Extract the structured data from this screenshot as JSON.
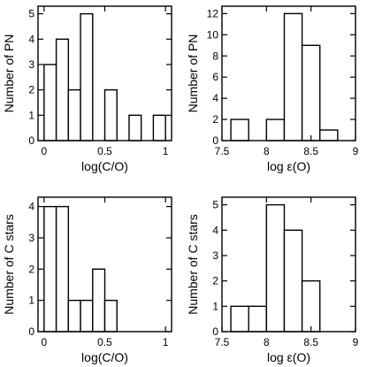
{
  "chart_data": [
    {
      "type": "bar",
      "panel": "top-left",
      "xlabel": "log(C/O)",
      "ylabel": "Number of PN",
      "xlim": [
        -0.05,
        1.05
      ],
      "ylim": [
        0,
        5.3
      ],
      "xticks": [
        0,
        0.5,
        1
      ],
      "xtick_labels": [
        "0",
        "0.5",
        "1"
      ],
      "yticks": [
        0,
        1,
        2,
        3,
        4,
        5
      ],
      "ytick_labels": [
        "0",
        "1",
        "2",
        "3",
        "4",
        "5"
      ],
      "bin_edges": [
        0,
        0.1,
        0.2,
        0.3,
        0.4,
        0.5,
        0.6,
        0.7,
        0.8,
        0.9,
        1.0
      ],
      "values": [
        3,
        4,
        2,
        5,
        0,
        2,
        0,
        1,
        0,
        1
      ],
      "grid": false
    },
    {
      "type": "bar",
      "panel": "top-right",
      "xlabel": "log ε(O)",
      "ylabel": "Number of PN",
      "xlim": [
        7.5,
        9.0
      ],
      "ylim": [
        0,
        12.7
      ],
      "xticks": [
        7.5,
        8,
        8.5,
        9
      ],
      "xtick_labels": [
        "7.5",
        "8",
        "8.5",
        "9"
      ],
      "yticks": [
        0,
        2,
        4,
        6,
        8,
        10,
        12
      ],
      "ytick_labels": [
        "0",
        "2",
        "4",
        "6",
        "8",
        "10",
        "12"
      ],
      "bin_edges": [
        7.6,
        7.8,
        8.0,
        8.2,
        8.4,
        8.6,
        8.8
      ],
      "values": [
        2,
        0,
        2,
        12,
        9,
        1
      ],
      "grid": false
    },
    {
      "type": "bar",
      "panel": "bottom-left",
      "xlabel": "log(C/O)",
      "ylabel": "Number of C stars",
      "xlim": [
        -0.05,
        1.05
      ],
      "ylim": [
        0,
        4.3
      ],
      "xticks": [
        0,
        0.5,
        1
      ],
      "xtick_labels": [
        "0",
        "0.5",
        "1"
      ],
      "yticks": [
        0,
        1,
        2,
        3,
        4
      ],
      "ytick_labels": [
        "0",
        "1",
        "2",
        "3",
        "4"
      ],
      "bin_edges": [
        0,
        0.1,
        0.2,
        0.3,
        0.4,
        0.5,
        0.6
      ],
      "values": [
        4,
        4,
        1,
        1,
        2,
        1
      ],
      "grid": false
    },
    {
      "type": "bar",
      "panel": "bottom-right",
      "xlabel": "log ε(O)",
      "ylabel": "Number of C stars",
      "xlim": [
        7.5,
        9.0
      ],
      "ylim": [
        0,
        5.3
      ],
      "xticks": [
        7.5,
        8,
        8.5,
        9
      ],
      "xtick_labels": [
        "7.5",
        "8",
        "8.5",
        "9"
      ],
      "yticks": [
        0,
        1,
        2,
        3,
        4,
        5
      ],
      "ytick_labels": [
        "0",
        "1",
        "2",
        "3",
        "4",
        "5"
      ],
      "bin_edges": [
        7.6,
        7.8,
        8.0,
        8.2,
        8.4,
        8.6
      ],
      "values": [
        1,
        1,
        5,
        4,
        2
      ],
      "grid": false
    }
  ]
}
